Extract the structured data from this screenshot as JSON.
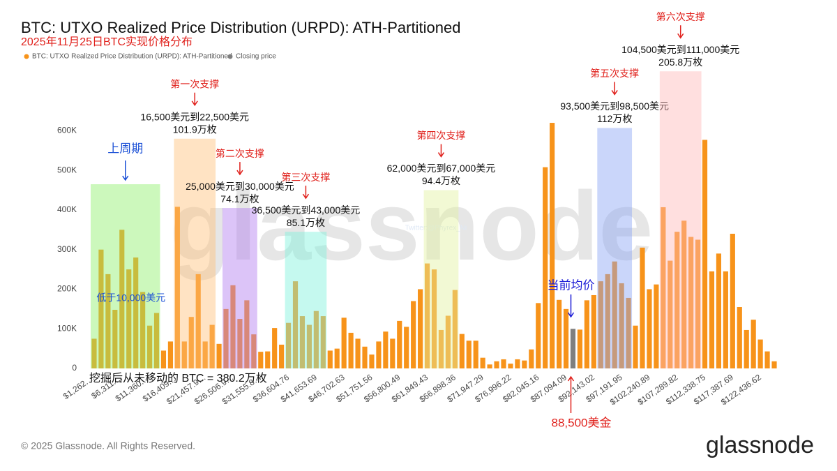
{
  "chart_data": {
    "type": "bar",
    "title": "BTC: UTXO Realized Price Distribution (URPD): ATH-Partitioned",
    "subtitle": "2025年11月25日BTC实现价格分布",
    "categories": [
      "$1,262.…",
      null,
      null,
      null,
      "$6,311.…",
      null,
      null,
      null,
      "$11,360.…",
      null,
      null,
      null,
      "$16,409.…",
      null,
      null,
      null,
      "$21,457.9…",
      null,
      null,
      null,
      "$26,506.9…",
      null,
      null,
      null,
      "$31,555.8…",
      null,
      null,
      null,
      "$36,604.76",
      null,
      null,
      null,
      "$41,653.69",
      null,
      null,
      null,
      "$46,702.63",
      null,
      null,
      null,
      "$51,751.56",
      null,
      null,
      null,
      "$56,800.49",
      null,
      null,
      null,
      "$61,849.43",
      null,
      null,
      null,
      "$66,898.36",
      null,
      null,
      null,
      "$71,947.29",
      null,
      null,
      null,
      "$76,996.22",
      null,
      null,
      null,
      "$82,045.16",
      null,
      null,
      null,
      "$87,094.09",
      null,
      null,
      null,
      "$92,143.02",
      null,
      null,
      null,
      "$97,191.95",
      null,
      null,
      null,
      "$102,240.89",
      null,
      null,
      null,
      "$107,289.82",
      null,
      null,
      null,
      "$112,338.75",
      null,
      null,
      null,
      "$117,387.69",
      null,
      null,
      null,
      "$122,436.62",
      null,
      null
    ],
    "series": [
      {
        "name": "BTC: UTXO Realized Price Distribution (URPD): ATH-Partitioned",
        "color": "#f7931a",
        "values": [
          75000,
          300000,
          238000,
          148000,
          350000,
          250000,
          280000,
          193000,
          108000,
          140000,
          45000,
          68000,
          408000,
          68000,
          130000,
          238000,
          68000,
          110000,
          62000,
          150000,
          210000,
          125000,
          172000,
          86000,
          42000,
          43000,
          102000,
          60000,
          115000,
          220000,
          132000,
          110000,
          145000,
          132000,
          45000,
          50000,
          128000,
          90000,
          75000,
          55000,
          35000,
          68000,
          93000,
          75000,
          120000,
          105000,
          170000,
          200000,
          265000,
          250000,
          97000,
          133000,
          198000,
          87000,
          70000,
          70000,
          27000,
          10000,
          18000,
          23000,
          12000,
          23000,
          20000,
          48000,
          165000,
          508000,
          620000,
          173000,
          150000,
          null,
          98000,
          172000,
          185000,
          220000,
          238000,
          270000,
          215000,
          178000,
          108000,
          305000,
          200000,
          212000,
          407000,
          272000,
          345000,
          373000,
          332000,
          325000,
          577000,
          245000,
          290000,
          245000,
          340000,
          155000,
          97000,
          123000,
          73000,
          43000,
          18000
        ]
      },
      {
        "name": "Closing price",
        "color": "#7f7f7f",
        "values": [
          null,
          null,
          null,
          null,
          null,
          null,
          null,
          null,
          null,
          null,
          null,
          null,
          null,
          null,
          null,
          null,
          null,
          null,
          null,
          null,
          null,
          null,
          null,
          null,
          null,
          null,
          null,
          null,
          null,
          null,
          null,
          null,
          null,
          null,
          null,
          null,
          null,
          null,
          null,
          null,
          null,
          null,
          null,
          null,
          null,
          null,
          null,
          null,
          null,
          null,
          null,
          null,
          null,
          null,
          null,
          null,
          null,
          null,
          null,
          null,
          null,
          null,
          null,
          null,
          null,
          null,
          null,
          null,
          null,
          100000,
          null,
          null,
          null,
          null,
          null,
          null,
          null,
          null,
          null,
          null,
          null,
          null,
          null,
          null,
          null,
          null,
          null,
          null,
          null,
          null,
          null,
          null,
          null,
          null,
          null,
          null,
          null,
          null,
          null
        ]
      }
    ],
    "ylim": [
      0,
      650000
    ],
    "yticks": [
      0,
      {
        "value": 100000,
        "label": "100K"
      },
      {
        "value": 200000,
        "label": "200K"
      },
      {
        "value": 300000,
        "label": "300K"
      },
      {
        "value": 400000,
        "label": "400K"
      },
      {
        "value": 500000,
        "label": "500K"
      },
      {
        "value": 600000,
        "label": "600K"
      }
    ],
    "grid": false,
    "zones": [
      {
        "from": 0,
        "to": 9,
        "top": 465000,
        "color": "#8ff06a",
        "heading": "上周期",
        "heading_color": "#1a4fd6",
        "note": "低于10,000美元"
      },
      {
        "from": 12,
        "to": 17,
        "top": 580000,
        "color": "#ffc27a",
        "heading": "第一次支撑",
        "heading_color": "#e0201b",
        "label": "16,500美元到22,500美元",
        "amount": "101.9万枚"
      },
      {
        "from": 19,
        "to": 23,
        "top": 405000,
        "color": "#b27cf0",
        "heading": "第二次支撑",
        "heading_color": "#e0201b",
        "label": "25,000美元到30,000美元",
        "amount": "74.1万枚"
      },
      {
        "from": 28,
        "to": 33,
        "top": 345000,
        "color": "#7ff2dc",
        "heading": "第三次支撑",
        "heading_color": "#e0201b",
        "label": "36,500美元到43,000美元",
        "amount": "85.1万枚"
      },
      {
        "from": 48,
        "to": 52,
        "top": 450000,
        "color": "#e2f2a0",
        "heading": "第四次支撑",
        "heading_color": "#e0201b",
        "label": "62,000美元到67,000美元",
        "amount": "94.4万枚"
      },
      {
        "from": 73,
        "to": 77,
        "top": 607000,
        "color": "#8aa4f5",
        "heading": "第五次支撑",
        "heading_color": "#e0201b",
        "label": "93,500美元到98,500美元",
        "amount": "112万枚"
      },
      {
        "from": 82,
        "to": 87,
        "top": 750000,
        "color": "#ffb8b8",
        "heading": "第六次支撑",
        "heading_color": "#e0201b",
        "label": "104,500美元到111,000美元",
        "amount": "205.8万枚"
      }
    ],
    "current": {
      "index": 69,
      "label": "当前均价",
      "price": "88,500美金"
    },
    "note": "挖掘后从未移动的 BTC = 380.2万枚",
    "watermark": "glassnode",
    "watermark_small": "Twitter:@Phyrex_Ni",
    "footer": "© 2025 Glassnode. All Rights Reserved.",
    "logo": "glassnode"
  }
}
